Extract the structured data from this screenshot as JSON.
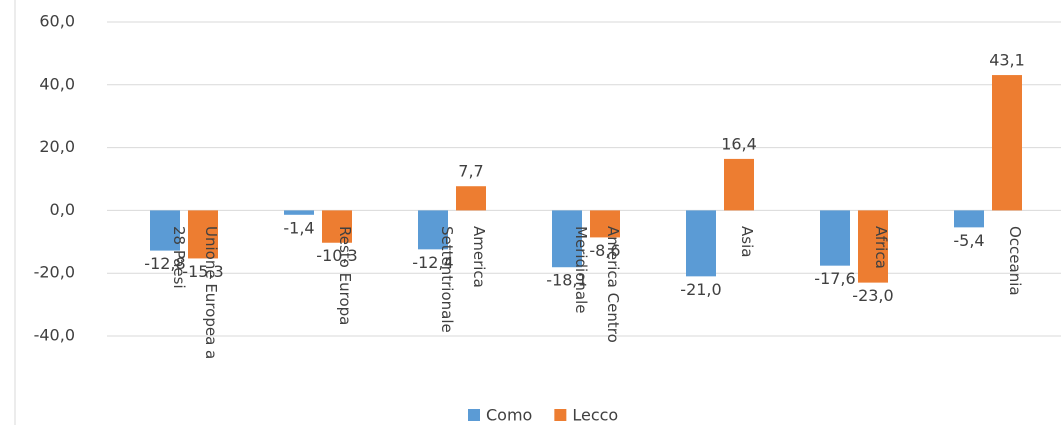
{
  "chart_data": {
    "type": "bar",
    "categories": [
      "Unione Europea a 28 Paesi",
      "Resto Europa",
      "America Settentrionale",
      "America Centro Meridionale",
      "Asia",
      "Africa",
      "Occeania"
    ],
    "series": [
      {
        "name": "Como",
        "color": "#5b9bd5",
        "values": [
          -12.8,
          -1.4,
          -12.4,
          -18.1,
          -21.0,
          -17.6,
          -5.4
        ],
        "value_labels": [
          "-12,8",
          "-1,4",
          "-12,4",
          "-18,1",
          "-21,0",
          "-17,6",
          "-5,4"
        ]
      },
      {
        "name": "Lecco",
        "color": "#ed7d31",
        "values": [
          -15.3,
          -10.3,
          7.7,
          -8.6,
          16.4,
          -23.0,
          43.1
        ],
        "value_labels": [
          "-15,3",
          "-10,3",
          "7,7",
          "-8,6",
          "16,4",
          "-23,0",
          "43,1"
        ]
      }
    ],
    "ylim": [
      -40,
      60
    ],
    "yticks": [
      {
        "value": -40,
        "label": "-40,0"
      },
      {
        "value": -20,
        "label": "-20,0"
      },
      {
        "value": 0,
        "label": "0,0"
      },
      {
        "value": 20,
        "label": "20,0"
      },
      {
        "value": 40,
        "label": "40,0"
      },
      {
        "value": 60,
        "label": "60,0"
      }
    ],
    "grid": true,
    "legend": "bottom"
  }
}
